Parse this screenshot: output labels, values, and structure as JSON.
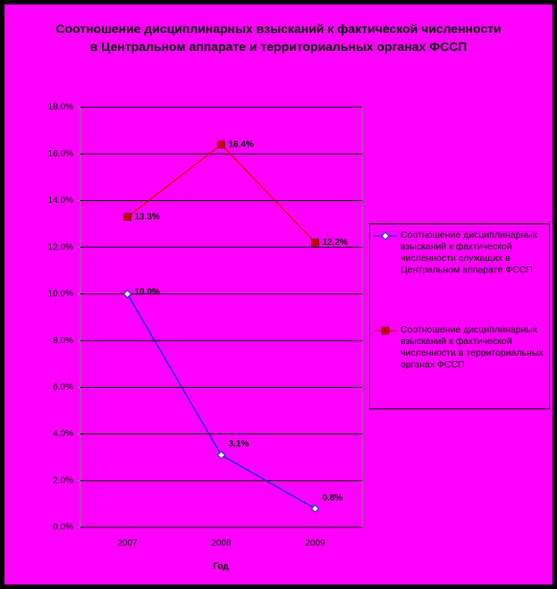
{
  "chart_data": {
    "type": "line",
    "title": "Соотношение дисциплинарных взысканий к фактической численности в Центральном аппарате и территориальных органах ФССП",
    "x_label": "Год",
    "categories": [
      "2007",
      "2008",
      "2009"
    ],
    "series": [
      {
        "name": "Соотношение дисциплинарных взысканий к фактической численности служащих в Центральном аппарате ФССП",
        "color": "#0033cc",
        "marker": "diamond",
        "values": [
          10.0,
          3.1,
          0.8
        ],
        "value_labels": [
          "10.0%",
          "3.1%",
          "0.8%"
        ]
      },
      {
        "name": "Соотношение дисциплинарных взысканий к фактической численности в территориальных органах ФССП",
        "color": "#cc0000",
        "marker": "square",
        "values": [
          13.3,
          16.4,
          12.2
        ],
        "value_labels": [
          "13.3%",
          "16.4%",
          "12.2%"
        ]
      }
    ],
    "ylim": [
      0,
      18
    ],
    "yticks": [
      {
        "value": 0,
        "label": "0.0%"
      },
      {
        "value": 2,
        "label": "2.0%"
      },
      {
        "value": 4,
        "label": "4.0%"
      },
      {
        "value": 6,
        "label": "6.0%"
      },
      {
        "value": 8,
        "label": "8.0%"
      },
      {
        "value": 10,
        "label": "10.0%"
      },
      {
        "value": 12,
        "label": "12.0%"
      },
      {
        "value": 14,
        "label": "14.0%"
      },
      {
        "value": 16,
        "label": "16.0%"
      },
      {
        "value": 18,
        "label": "18.0%"
      }
    ],
    "grid": true,
    "background": "#ff00ff",
    "legend_position": "right"
  }
}
